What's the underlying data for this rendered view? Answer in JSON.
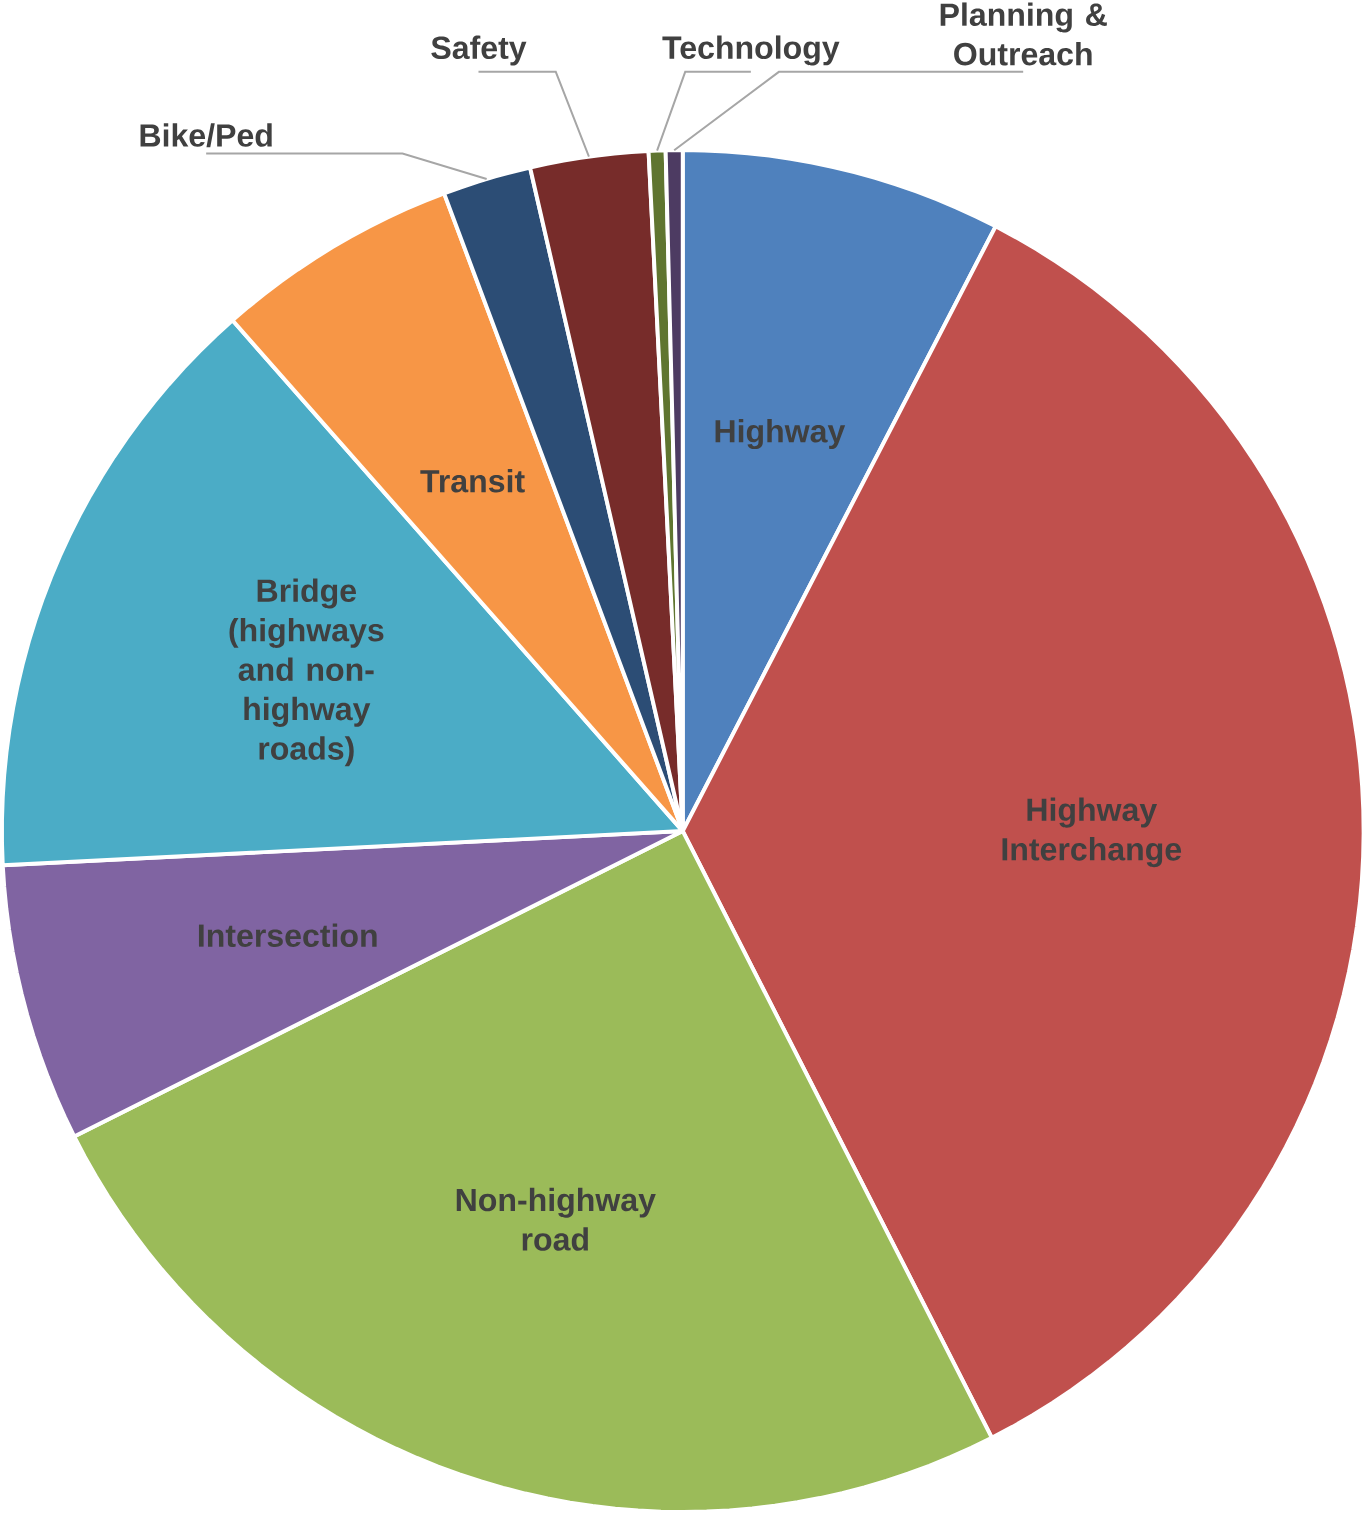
{
  "chart_data": {
    "type": "pie",
    "categories": [
      "Highway",
      "Highway Interchange",
      "Non-highway road",
      "Intersection",
      "Bridge (highways and non-highway roads)",
      "Transit",
      "Bike/Ped",
      "Safety",
      "Technology",
      "Planning & Outreach"
    ],
    "values": [
      7.6,
      34.9,
      25.1,
      6.6,
      14.3,
      5.8,
      2.1,
      2.8,
      0.4,
      0.4
    ],
    "colors": [
      "#4f81bd",
      "#c0504d",
      "#9bbb59",
      "#8064a2",
      "#4bacc6",
      "#f79646",
      "#2c4d75",
      "#772c2a",
      "#5f7530",
      "#4d3b62"
    ]
  }
}
